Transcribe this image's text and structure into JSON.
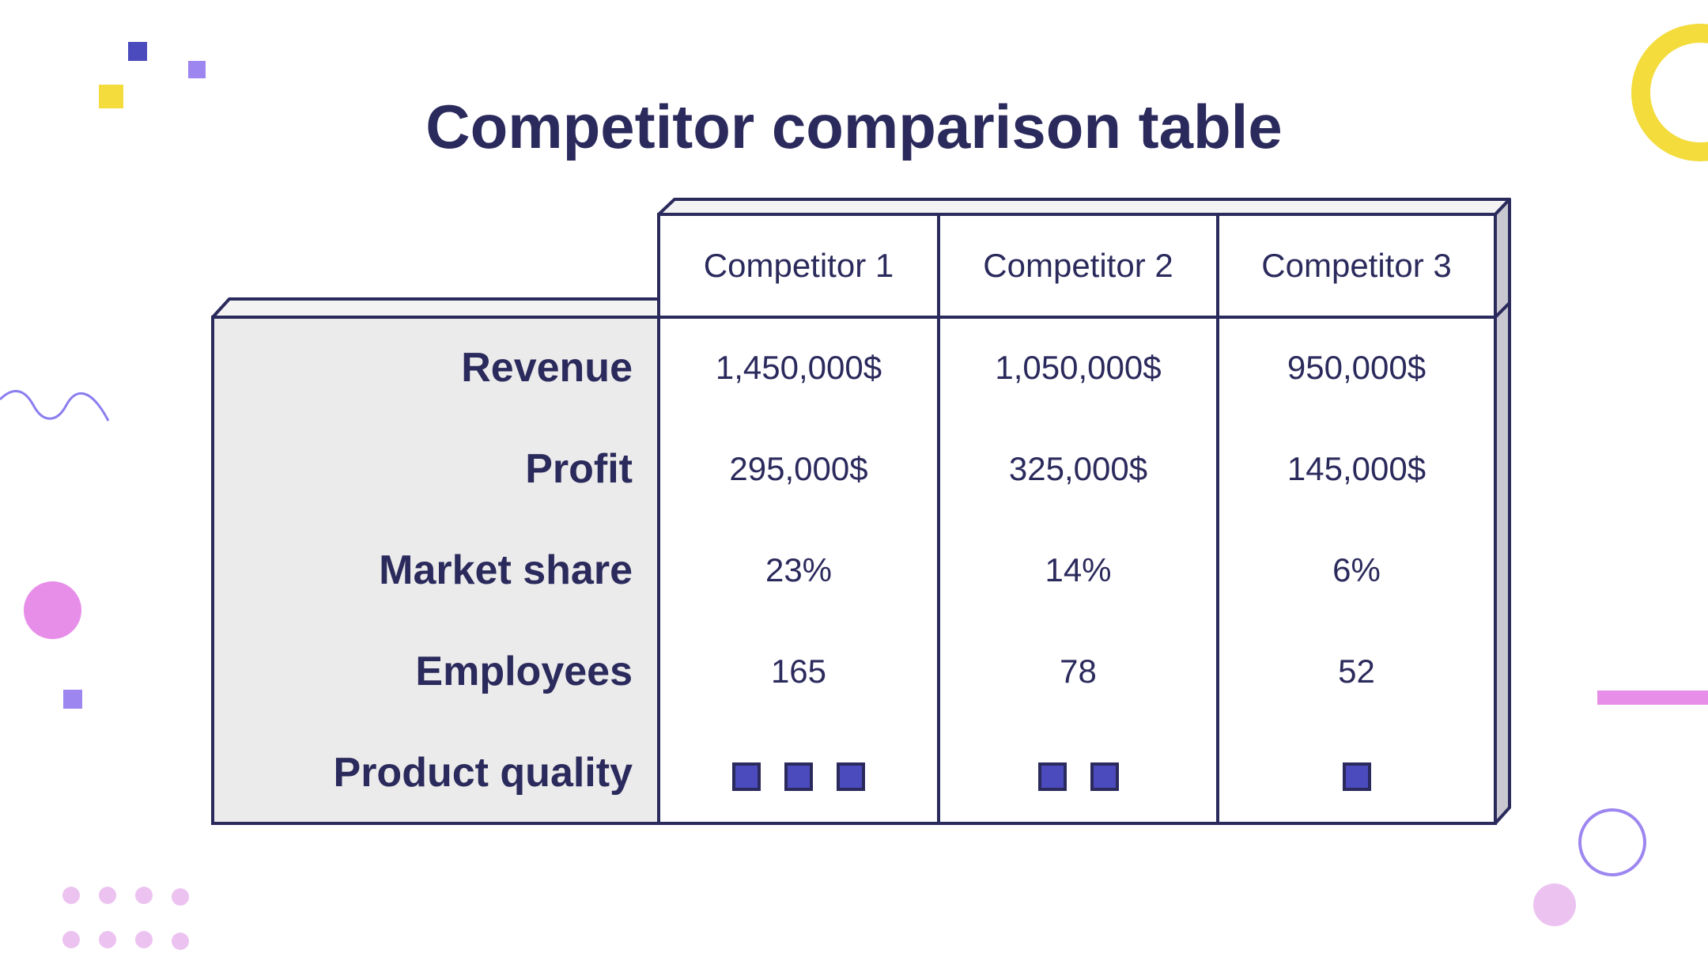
{
  "slide": {
    "title": "Competitor comparison table"
  },
  "table": {
    "columns": [
      "Competitor 1",
      "Competitor 2",
      "Competitor 3"
    ],
    "rows": [
      {
        "label": "Revenue",
        "values": [
          "1,450,000$",
          "1,050,000$",
          "950,000$"
        ]
      },
      {
        "label": "Profit",
        "values": [
          "295,000$",
          "325,000$",
          "145,000$"
        ]
      },
      {
        "label": "Market share",
        "values": [
          "23%",
          "14%",
          "6%"
        ]
      },
      {
        "label": "Employees",
        "values": [
          "165",
          "78",
          "52"
        ]
      },
      {
        "label": "Product quality",
        "quality_levels": [
          3,
          2,
          1
        ]
      }
    ]
  },
  "colors": {
    "text": "#2b2a5c",
    "label_panel": "#ebebeb",
    "quality_square": "#4b4bbd",
    "accent_yellow": "#f3dc3b",
    "accent_pink": "#e78ee9",
    "accent_purple": "#9d86f0"
  }
}
